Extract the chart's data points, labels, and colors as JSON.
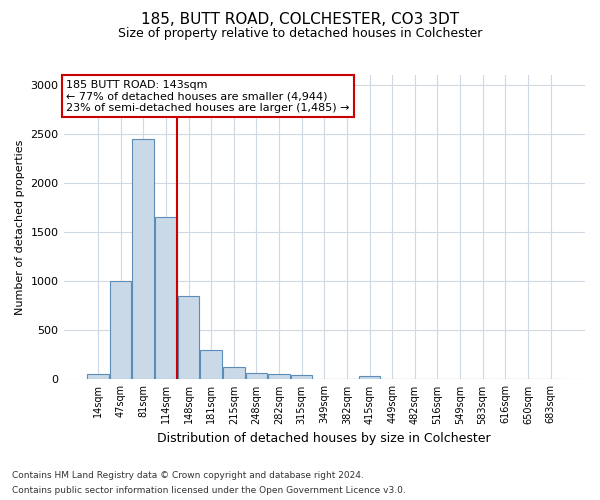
{
  "title": "185, BUTT ROAD, COLCHESTER, CO3 3DT",
  "subtitle": "Size of property relative to detached houses in Colchester",
  "xlabel": "Distribution of detached houses by size in Colchester",
  "ylabel": "Number of detached properties",
  "bar_labels": [
    "14sqm",
    "47sqm",
    "81sqm",
    "114sqm",
    "148sqm",
    "181sqm",
    "215sqm",
    "248sqm",
    "282sqm",
    "315sqm",
    "349sqm",
    "382sqm",
    "415sqm",
    "449sqm",
    "482sqm",
    "516sqm",
    "549sqm",
    "583sqm",
    "616sqm",
    "650sqm",
    "683sqm"
  ],
  "bar_values": [
    55,
    1000,
    2450,
    1650,
    850,
    295,
    130,
    62,
    55,
    50,
    0,
    0,
    30,
    0,
    0,
    0,
    0,
    0,
    0,
    0,
    0
  ],
  "bar_color": "#c9d9e8",
  "bar_edge_color": "#5b8db8",
  "vline_color": "#cc0000",
  "annotation_line1": "185 BUTT ROAD: 143sqm",
  "annotation_line2": "← 77% of detached houses are smaller (4,944)",
  "annotation_line3": "23% of semi-detached houses are larger (1,485) →",
  "annotation_box_color": "#ffffff",
  "annotation_box_edge": "#cc0000",
  "ylim": [
    0,
    3100
  ],
  "yticks": [
    0,
    500,
    1000,
    1500,
    2000,
    2500,
    3000
  ],
  "footer_line1": "Contains HM Land Registry data © Crown copyright and database right 2024.",
  "footer_line2": "Contains public sector information licensed under the Open Government Licence v3.0.",
  "background_color": "#ffffff",
  "grid_color": "#d0d8e4",
  "title_fontsize": 11,
  "subtitle_fontsize": 9,
  "ylabel_fontsize": 8,
  "xlabel_fontsize": 9,
  "tick_fontsize": 7,
  "annotation_fontsize": 8,
  "footer_fontsize": 6.5
}
